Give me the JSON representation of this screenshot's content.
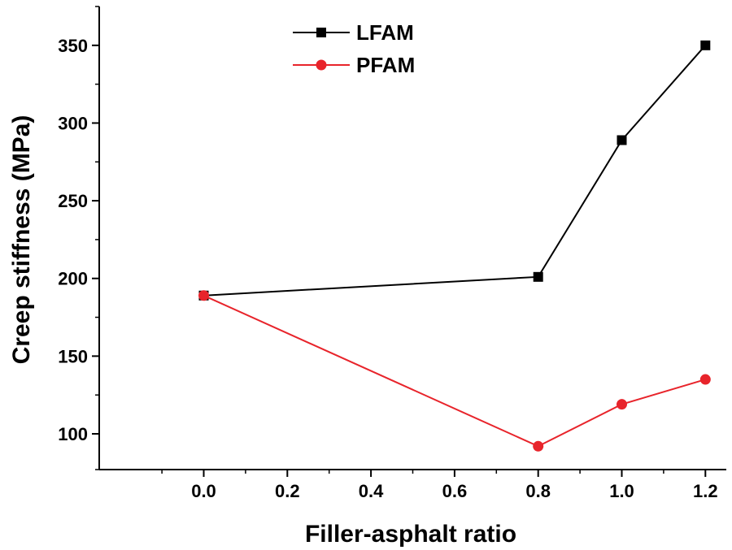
{
  "chart_data": {
    "type": "line",
    "xlabel": "Filler-asphalt ratio",
    "ylabel": "Creep stiffness (MPa)",
    "xlim": [
      -0.25,
      1.25
    ],
    "ylim": [
      77,
      375
    ],
    "x_ticks": [
      "0.0",
      "0.2",
      "0.4",
      "0.6",
      "0.8",
      "1.0",
      "1.2"
    ],
    "y_ticks": [
      "100",
      "150",
      "200",
      "250",
      "300",
      "350"
    ],
    "legend_position": "top-center",
    "grid": false,
    "series": [
      {
        "name": "LFAM",
        "color": "#000000",
        "marker": "square",
        "x": [
          0.0,
          0.8,
          1.0,
          1.2
        ],
        "y": [
          189,
          201,
          289,
          350
        ]
      },
      {
        "name": "PFAM",
        "color": "#e8242b",
        "marker": "circle",
        "x": [
          0.0,
          0.8,
          1.0,
          1.2
        ],
        "y": [
          189,
          92,
          119,
          135
        ]
      }
    ]
  }
}
